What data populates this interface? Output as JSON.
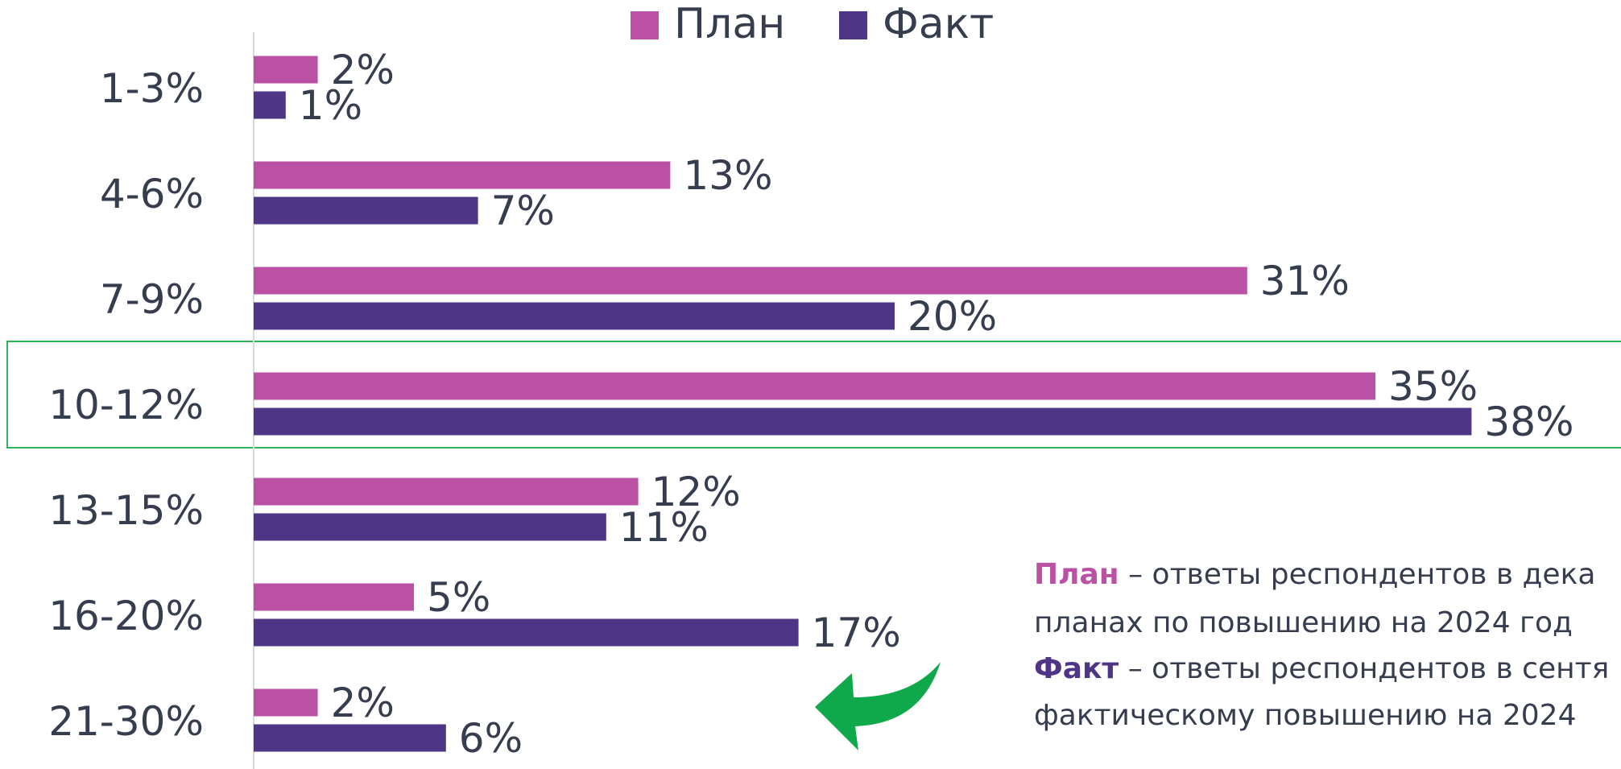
{
  "chart_data": {
    "type": "barh",
    "categories": [
      "1-3%",
      "4-6%",
      "7-9%",
      "10-12%",
      "13-15%",
      "16-20%",
      "21-30%"
    ],
    "series": [
      {
        "name": "План",
        "color": "#bb51a5",
        "values": [
          2,
          13,
          31,
          35,
          12,
          5,
          2
        ],
        "value_labels": [
          "2%",
          "13%",
          "31%",
          "35%",
          "12%",
          "5%",
          "2%"
        ]
      },
      {
        "name": "Факт",
        "color": "#4e3586",
        "values": [
          1,
          7,
          20,
          38,
          11,
          17,
          6
        ],
        "value_labels": [
          "1%",
          "7%",
          "20%",
          "38%",
          "11%",
          "17%",
          "6%"
        ]
      }
    ],
    "xlim": [
      0,
      42
    ],
    "legend": "top",
    "annotations": [
      {
        "term": "План",
        "text": " – ответы респондентов в дека"
      },
      {
        "text": "планах по повышению на 2024 год"
      },
      {
        "term": "Факт",
        "text": " – ответы респондентов в сентя"
      },
      {
        "text": "фактическому повышению на 2024"
      }
    ]
  }
}
